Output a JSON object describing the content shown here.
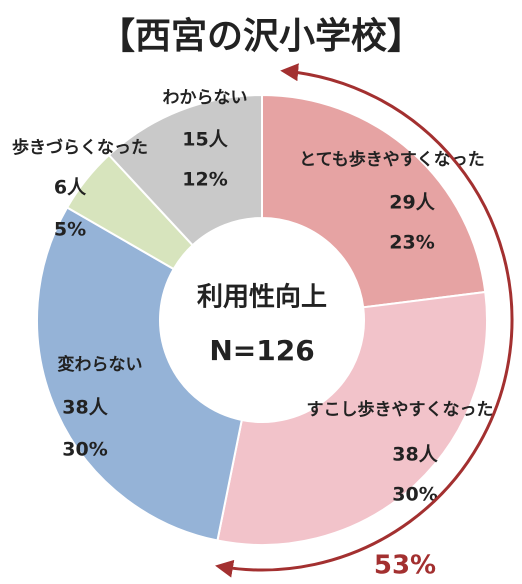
{
  "chart_data": {
    "type": "donut",
    "title": "【西宮の沢小学校】",
    "center_title": "利用性向上",
    "center_subtitle": "N=126",
    "categories": [
      "とても歩きやすくなった",
      "すこし歩きやすくなった",
      "変わらない",
      "歩きづらくなった",
      "わからない"
    ],
    "values": [
      29,
      38,
      38,
      6,
      15
    ],
    "value_labels": [
      "29人",
      "38人",
      "38人",
      "6人",
      "15人"
    ],
    "percents": [
      23,
      30,
      30,
      5,
      12
    ],
    "percent_labels": [
      "23%",
      "30%",
      "30%",
      "5%",
      "12%"
    ],
    "colors": [
      "#e6a3a3",
      "#f2c3ca",
      "#95b3d7",
      "#d7e4bd",
      "#c9c9c9"
    ],
    "annotation": "53%",
    "annotation_color": "#a33030"
  }
}
